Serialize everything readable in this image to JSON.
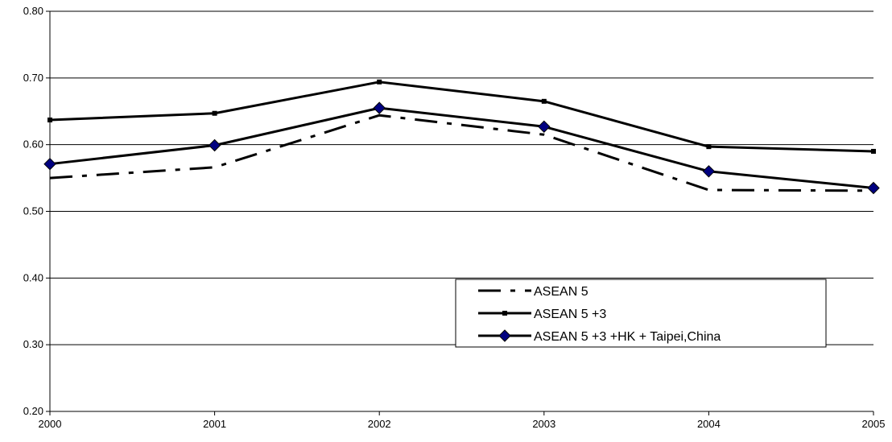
{
  "chart_data": {
    "type": "line",
    "title": "",
    "xlabel": "",
    "ylabel": "",
    "x": [
      "2000",
      "2001",
      "2002",
      "2003",
      "2004",
      "2005"
    ],
    "ylim": [
      0.2,
      0.8
    ],
    "yticks": [
      "0.20",
      "0.30",
      "0.40",
      "0.50",
      "0.60",
      "0.70",
      "0.80"
    ],
    "grid": "horizontal",
    "legend_position": "lower-right",
    "series": [
      {
        "name": "ASEAN 5",
        "values": [
          0.55,
          0.566,
          0.644,
          0.615,
          0.532,
          0.531
        ],
        "style": "dashed",
        "marker": "none",
        "color": "#000000"
      },
      {
        "name": "ASEAN 5 +3",
        "values": [
          0.637,
          0.647,
          0.694,
          0.665,
          0.597,
          0.59
        ],
        "style": "solid",
        "marker": "square",
        "color": "#000000"
      },
      {
        "name": "ASEAN 5 +3 +HK + Taipei,China",
        "values": [
          0.571,
          0.599,
          0.655,
          0.627,
          0.56,
          0.535
        ],
        "style": "solid",
        "marker": "diamond",
        "color": "#000000",
        "marker_color": "#000080"
      }
    ]
  }
}
